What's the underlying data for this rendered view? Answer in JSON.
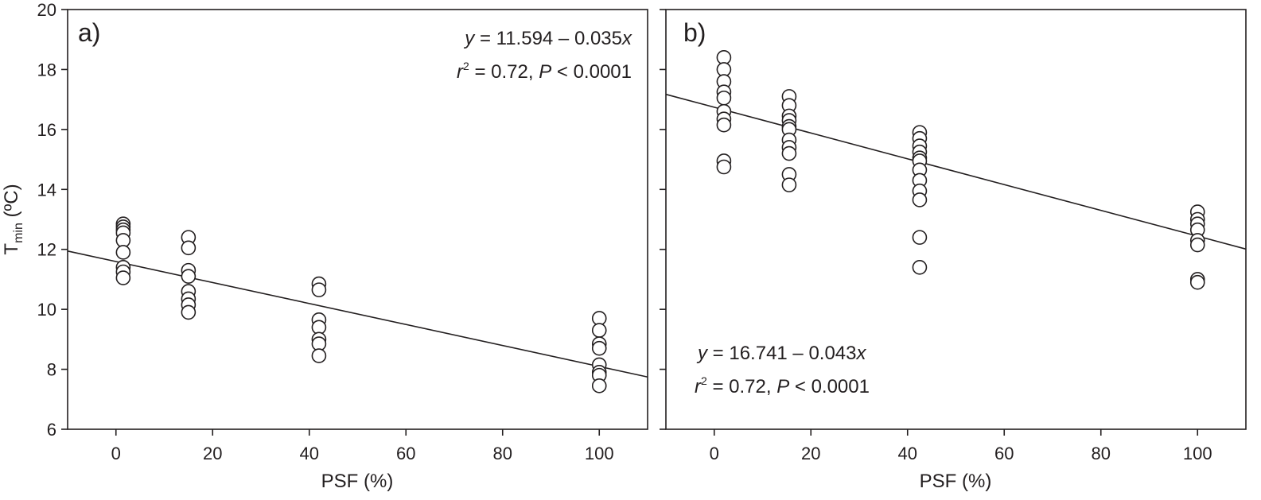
{
  "chart_data": [
    {
      "type": "scatter",
      "panel_label": "a)",
      "xlabel": "PSF (%)",
      "ylabel": "T",
      "ylabel_sub": "min",
      "ylabel_unit": " (ºC)",
      "xlim": [
        -10,
        110
      ],
      "ylim": [
        6,
        20
      ],
      "xticks": [
        0,
        20,
        40,
        60,
        80,
        100
      ],
      "yticks": [
        6,
        8,
        10,
        12,
        14,
        16,
        18,
        20
      ],
      "grid": false,
      "equation": {
        "y": "y",
        "body": " = 11.594 – 0.035",
        "x": "x"
      },
      "stats": {
        "r": "r",
        "sup": "2",
        "mid": " = 0.72, ",
        "p": "P",
        "tail": " < 0.0001"
      },
      "equation_position": "top-right",
      "regression": {
        "intercept": 11.594,
        "slope": -0.035
      },
      "points": [
        {
          "x": 1.5,
          "y": 12.85
        },
        {
          "x": 1.5,
          "y": 12.75
        },
        {
          "x": 1.5,
          "y": 12.65
        },
        {
          "x": 1.5,
          "y": 12.55
        },
        {
          "x": 1.5,
          "y": 12.3
        },
        {
          "x": 1.5,
          "y": 11.9
        },
        {
          "x": 1.5,
          "y": 11.4
        },
        {
          "x": 1.5,
          "y": 11.25
        },
        {
          "x": 1.5,
          "y": 11.05
        },
        {
          "x": 15,
          "y": 12.4
        },
        {
          "x": 15,
          "y": 12.05
        },
        {
          "x": 15,
          "y": 11.3
        },
        {
          "x": 15,
          "y": 11.1
        },
        {
          "x": 15,
          "y": 10.6
        },
        {
          "x": 15,
          "y": 10.35
        },
        {
          "x": 15,
          "y": 10.15
        },
        {
          "x": 15,
          "y": 9.9
        },
        {
          "x": 42,
          "y": 10.85
        },
        {
          "x": 42,
          "y": 10.65
        },
        {
          "x": 42,
          "y": 9.65
        },
        {
          "x": 42,
          "y": 9.4
        },
        {
          "x": 42,
          "y": 9.0
        },
        {
          "x": 42,
          "y": 8.85
        },
        {
          "x": 42,
          "y": 8.45
        },
        {
          "x": 100,
          "y": 9.7
        },
        {
          "x": 100,
          "y": 9.3
        },
        {
          "x": 100,
          "y": 8.85
        },
        {
          "x": 100,
          "y": 8.7
        },
        {
          "x": 100,
          "y": 8.15
        },
        {
          "x": 100,
          "y": 7.9
        },
        {
          "x": 100,
          "y": 7.8
        },
        {
          "x": 100,
          "y": 7.45
        }
      ]
    },
    {
      "type": "scatter",
      "panel_label": "b)",
      "xlabel": "PSF (%)",
      "xlim": [
        -10,
        110
      ],
      "ylim": [
        6,
        20
      ],
      "xticks": [
        0,
        20,
        40,
        60,
        80,
        100
      ],
      "grid": false,
      "equation": {
        "y": "y",
        "body": " = 16.741 – 0.043",
        "x": "x"
      },
      "stats": {
        "r": "r",
        "sup": "2",
        "mid": " = 0.72, ",
        "p": "P",
        "tail": " < 0.0001"
      },
      "equation_position": "bottom-left",
      "regression": {
        "intercept": 16.741,
        "slope": -0.043
      },
      "points": [
        {
          "x": 2,
          "y": 18.4
        },
        {
          "x": 2,
          "y": 18.0
        },
        {
          "x": 2,
          "y": 17.6
        },
        {
          "x": 2,
          "y": 17.25
        },
        {
          "x": 2,
          "y": 17.05
        },
        {
          "x": 2,
          "y": 16.6
        },
        {
          "x": 2,
          "y": 16.35
        },
        {
          "x": 2,
          "y": 16.15
        },
        {
          "x": 2,
          "y": 14.95
        },
        {
          "x": 2,
          "y": 14.75
        },
        {
          "x": 15.5,
          "y": 17.1
        },
        {
          "x": 15.5,
          "y": 16.8
        },
        {
          "x": 15.5,
          "y": 16.45
        },
        {
          "x": 15.5,
          "y": 16.3
        },
        {
          "x": 15.5,
          "y": 16.1
        },
        {
          "x": 15.5,
          "y": 16.0
        },
        {
          "x": 15.5,
          "y": 15.65
        },
        {
          "x": 15.5,
          "y": 15.4
        },
        {
          "x": 15.5,
          "y": 15.2
        },
        {
          "x": 15.5,
          "y": 14.5
        },
        {
          "x": 15.5,
          "y": 14.15
        },
        {
          "x": 42.5,
          "y": 15.9
        },
        {
          "x": 42.5,
          "y": 15.7
        },
        {
          "x": 42.5,
          "y": 15.45
        },
        {
          "x": 42.5,
          "y": 15.25
        },
        {
          "x": 42.5,
          "y": 15.05
        },
        {
          "x": 42.5,
          "y": 14.95
        },
        {
          "x": 42.5,
          "y": 14.65
        },
        {
          "x": 42.5,
          "y": 14.3
        },
        {
          "x": 42.5,
          "y": 13.95
        },
        {
          "x": 42.5,
          "y": 13.65
        },
        {
          "x": 42.5,
          "y": 12.4
        },
        {
          "x": 42.5,
          "y": 11.4
        },
        {
          "x": 100,
          "y": 13.25
        },
        {
          "x": 100,
          "y": 13.0
        },
        {
          "x": 100,
          "y": 12.85
        },
        {
          "x": 100,
          "y": 12.65
        },
        {
          "x": 100,
          "y": 12.3
        },
        {
          "x": 100,
          "y": 12.15
        },
        {
          "x": 100,
          "y": 11.0
        },
        {
          "x": 100,
          "y": 10.9
        }
      ]
    }
  ]
}
